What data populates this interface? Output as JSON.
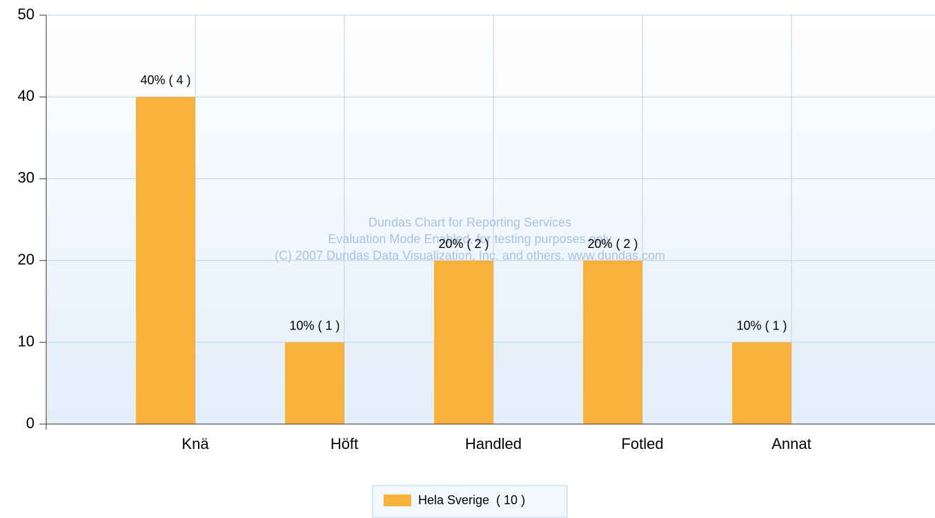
{
  "chart_data": {
    "type": "bar",
    "categories": [
      "Knä",
      "Höft",
      "Handled",
      "Fotled",
      "Annat"
    ],
    "series": [
      {
        "name": "Hela Sverige  ( 10 )",
        "color": "#f9b13d",
        "values": [
          40,
          10,
          20,
          20,
          10
        ],
        "value_labels": [
          "40% ( 4 )",
          "10% ( 1 )",
          "20% ( 2 )",
          "20% ( 2 )",
          "10% ( 1 )"
        ]
      }
    ],
    "ylim": [
      0,
      50
    ],
    "yticks": [
      0,
      10,
      20,
      30,
      40,
      50
    ],
    "grid": true,
    "legend": "bottom",
    "watermark": [
      "Dundas Chart for Reporting Services",
      "Evaluation Mode Enabled, for testing purposes only",
      "(C) 2007 Dundas Data Visualization, Inc. and others. www.dundas.com"
    ]
  }
}
